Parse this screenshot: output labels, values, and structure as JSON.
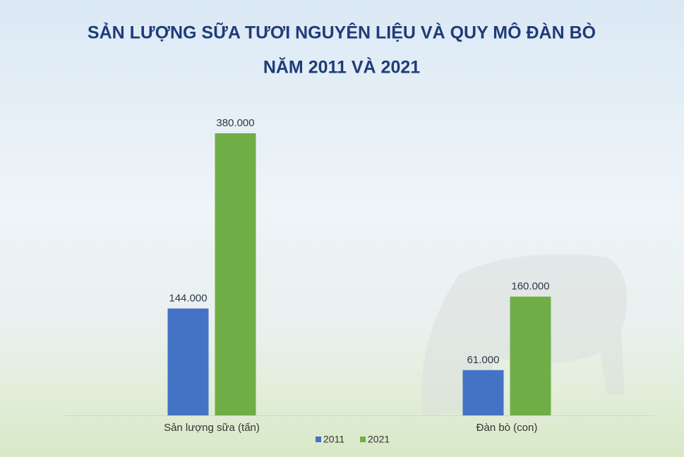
{
  "chart_data": {
    "type": "bar",
    "title": [
      "SẢN LƯỢNG SỮA TƯƠI NGUYÊN LIỆU VÀ QUY MÔ ĐÀN BÒ",
      "NĂM 2011 VÀ 2021"
    ],
    "categories": [
      "Sản lượng sữa (tấn)",
      "Đàn bò (con)"
    ],
    "series": [
      {
        "name": "2011",
        "color": "#4472c4",
        "values": [
          144000,
          61000
        ],
        "value_labels": [
          "144.000",
          "61.000"
        ]
      },
      {
        "name": "2021",
        "color": "#70ad47",
        "values": [
          380000,
          160000
        ],
        "value_labels": [
          "380.000",
          "160.000"
        ]
      }
    ],
    "legend": "bottom"
  }
}
